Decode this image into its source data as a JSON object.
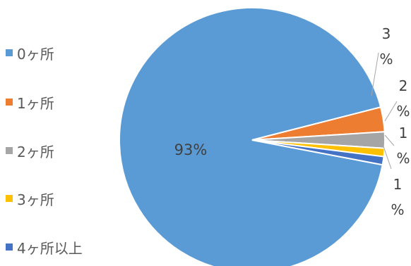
{
  "chart_data": {
    "type": "pie",
    "title": "",
    "legend_position": "left",
    "categories": [
      "0ヶ所",
      "1ヶ所",
      "2ヶ所",
      "3ヶ所",
      "4ヶ所以上"
    ],
    "values": [
      93,
      3,
      2,
      1,
      1
    ],
    "data_labels": [
      "93%",
      "3%",
      "2%",
      "1%",
      "1%"
    ],
    "colors": [
      "#5B9BD5",
      "#ED7D31",
      "#A5A5A5",
      "#FFC000",
      "#4472C4"
    ]
  }
}
